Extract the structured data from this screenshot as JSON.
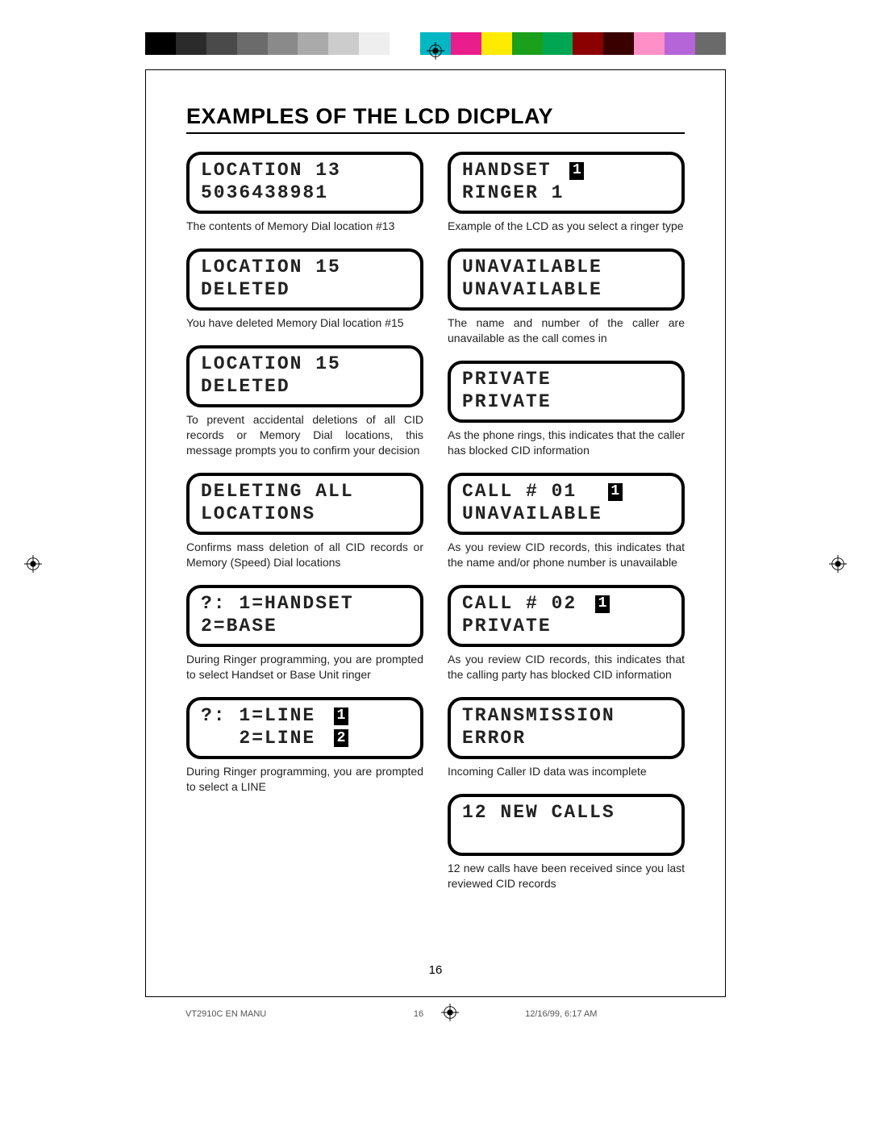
{
  "color_bar": {
    "swatches": [
      "#000000",
      "#2b2b2b",
      "#4a4a4a",
      "#6b6b6b",
      "#8a8a8a",
      "#aaaaaa",
      "#cccccc",
      "#eeeeee",
      "#ffffff",
      "#00b7c3",
      "#e91e8c",
      "#ffeb00",
      "#1aa01a",
      "#00a651",
      "#8b0000",
      "#3a0000",
      "#ff8fc7",
      "#b565d8",
      "#6a6a6a"
    ]
  },
  "page": {
    "title": "EXAMPLES OF THE LCD DICPLAY",
    "page_number": "16"
  },
  "left": [
    {
      "lcd": [
        {
          "text": "LOCATION 13"
        },
        {
          "text": "5036438981"
        }
      ],
      "caption": "The contents of Memory Dial location #13"
    },
    {
      "lcd": [
        {
          "text": "LOCATION 15"
        },
        {
          "text": "DELETED"
        }
      ],
      "caption": "You have deleted Memory Dial location #15"
    },
    {
      "lcd": [
        {
          "text": "LOCATION 15"
        },
        {
          "text": "DELETED"
        }
      ],
      "caption": "To prevent accidental deletions of all CID records or Memory Dial locations, this message prompts you to confirm your decision"
    },
    {
      "lcd": [
        {
          "text": "DELETING ALL"
        },
        {
          "text": "LOCATIONS"
        }
      ],
      "caption": "Confirms mass deletion of all CID records or Memory (Speed) Dial locations"
    },
    {
      "lcd": [
        {
          "text": "?: 1=HANDSET"
        },
        {
          "text": "2=BASE"
        }
      ],
      "caption": "During Ringer programming, you are prompted to select Handset or Base Unit ringer"
    },
    {
      "lcd": [
        {
          "text": "?: 1=LINE ",
          "inv": "1"
        },
        {
          "text": "   2=LINE ",
          "inv": "2"
        }
      ],
      "caption": "During Ringer programming, you are prompted to select a LINE"
    }
  ],
  "right": [
    {
      "lcd": [
        {
          "text": "HANDSET ",
          "inv": "1"
        },
        {
          "text": "RINGER 1"
        }
      ],
      "caption": "Example of the LCD as you select a ringer type"
    },
    {
      "lcd": [
        {
          "text": "UNAVAILABLE"
        },
        {
          "text": "UNAVAILABLE"
        }
      ],
      "caption": "The name and number of the caller are unavailable as the call comes in"
    },
    {
      "lcd": [
        {
          "text": "PRIVATE"
        },
        {
          "text": "PRIVATE"
        }
      ],
      "caption": "As the phone rings, this indicates that the caller has blocked CID information"
    },
    {
      "lcd": [
        {
          "text": "CALL # 01  ",
          "inv": "1"
        },
        {
          "text": "UNAVAILABLE"
        }
      ],
      "caption": "As you review CID records, this indicates that the name and/or phone number is unavailable"
    },
    {
      "lcd": [
        {
          "text": "CALL # 02 ",
          "inv": "1"
        },
        {
          "text": "PRIVATE"
        }
      ],
      "caption": "As you review CID records, this indicates that the calling party has blocked CID information"
    },
    {
      "lcd": [
        {
          "text": "TRANSMISSION"
        },
        {
          "text": "ERROR"
        }
      ],
      "caption": "Incoming Caller ID data was incomplete"
    },
    {
      "lcd": [
        {
          "text": "12 NEW CALLS"
        },
        {
          "text": " "
        }
      ],
      "caption": "12 new calls have been received since you last reviewed CID records"
    }
  ],
  "footer": {
    "doc_name": "VT2910C EN MANU",
    "page": "16",
    "timestamp": "12/16/99, 6:17 AM"
  }
}
